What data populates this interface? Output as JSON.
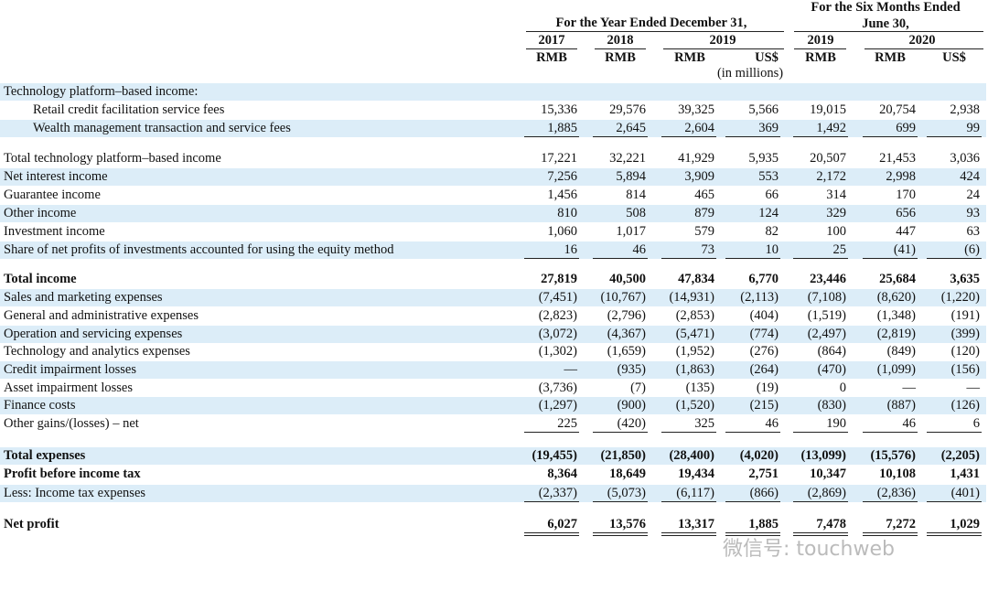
{
  "header": {
    "year_group": "For the Year Ended December 31,",
    "six_group": [
      "For the Six Months Ended",
      "June 30,"
    ],
    "years": [
      "2017",
      "2018",
      "2019",
      "2019",
      "2020"
    ],
    "units": [
      "RMB",
      "RMB",
      "RMB",
      "US$",
      "RMB",
      "RMB",
      "US$"
    ],
    "note": "(in millions)"
  },
  "rows": [
    {
      "label": "Technology platform–based income:",
      "values": []
    },
    {
      "label": "Retail credit facilitation service fees",
      "values": [
        "15,336",
        "29,576",
        "39,325",
        "5,566",
        "19,015",
        "20,754",
        "2,938"
      ]
    },
    {
      "label": "Wealth management transaction and service fees",
      "values": [
        "1,885",
        "2,645",
        "2,604",
        "369",
        "1,492",
        "699",
        "99"
      ]
    },
    {
      "label": "Total technology platform–based income",
      "values": [
        "17,221",
        "32,221",
        "41,929",
        "5,935",
        "20,507",
        "21,453",
        "3,036"
      ]
    },
    {
      "label": "Net interest income",
      "values": [
        "7,256",
        "5,894",
        "3,909",
        "553",
        "2,172",
        "2,998",
        "424"
      ]
    },
    {
      "label": "Guarantee income",
      "values": [
        "1,456",
        "814",
        "465",
        "66",
        "314",
        "170",
        "24"
      ]
    },
    {
      "label": "Other income",
      "values": [
        "810",
        "508",
        "879",
        "124",
        "329",
        "656",
        "93"
      ]
    },
    {
      "label": "Investment income",
      "values": [
        "1,060",
        "1,017",
        "579",
        "82",
        "100",
        "447",
        "63"
      ]
    },
    {
      "label": "Share of net profits of investments accounted for using the equity method",
      "values": [
        "16",
        "46",
        "73",
        "10",
        "25",
        "(41)",
        "(6)"
      ]
    },
    {
      "label": "Total income",
      "values": [
        "27,819",
        "40,500",
        "47,834",
        "6,770",
        "23,446",
        "25,684",
        "3,635"
      ]
    },
    {
      "label": "Sales and marketing expenses",
      "values": [
        "(7,451)",
        "(10,767)",
        "(14,931)",
        "(2,113)",
        "(7,108)",
        "(8,620)",
        "(1,220)"
      ]
    },
    {
      "label": "General and administrative expenses",
      "values": [
        "(2,823)",
        "(2,796)",
        "(2,853)",
        "(404)",
        "(1,519)",
        "(1,348)",
        "(191)"
      ]
    },
    {
      "label": "Operation and servicing expenses",
      "values": [
        "(3,072)",
        "(4,367)",
        "(5,471)",
        "(774)",
        "(2,497)",
        "(2,819)",
        "(399)"
      ]
    },
    {
      "label": "Technology and analytics expenses",
      "values": [
        "(1,302)",
        "(1,659)",
        "(1,952)",
        "(276)",
        "(864)",
        "(849)",
        "(120)"
      ]
    },
    {
      "label": "Credit impairment losses",
      "values": [
        "—",
        "(935)",
        "(1,863)",
        "(264)",
        "(470)",
        "(1,099)",
        "(156)"
      ]
    },
    {
      "label": "Asset impairment losses",
      "values": [
        "(3,736)",
        "(7)",
        "(135)",
        "(19)",
        "0",
        "—",
        "—"
      ]
    },
    {
      "label": "Finance costs",
      "values": [
        "(1,297)",
        "(900)",
        "(1,520)",
        "(215)",
        "(830)",
        "(887)",
        "(126)"
      ]
    },
    {
      "label": "Other gains/(losses) – net",
      "values": [
        "225",
        "(420)",
        "325",
        "46",
        "190",
        "46",
        "6"
      ]
    },
    {
      "label": "Total expenses",
      "values": [
        "(19,455)",
        "(21,850)",
        "(28,400)",
        "(4,020)",
        "(13,099)",
        "(15,576)",
        "(2,205)"
      ]
    },
    {
      "label": "Profit before income tax",
      "values": [
        "8,364",
        "18,649",
        "19,434",
        "2,751",
        "10,347",
        "10,108",
        "1,431"
      ]
    },
    {
      "label": "Less: Income tax expenses",
      "values": [
        "(2,337)",
        "(5,073)",
        "(6,117)",
        "(866)",
        "(2,869)",
        "(2,836)",
        "(401)"
      ]
    },
    {
      "label": "Net profit",
      "values": [
        "6,027",
        "13,576",
        "13,317",
        "1,885",
        "7,478",
        "7,272",
        "1,029"
      ]
    }
  ],
  "watermark": "微信号: touchweb"
}
